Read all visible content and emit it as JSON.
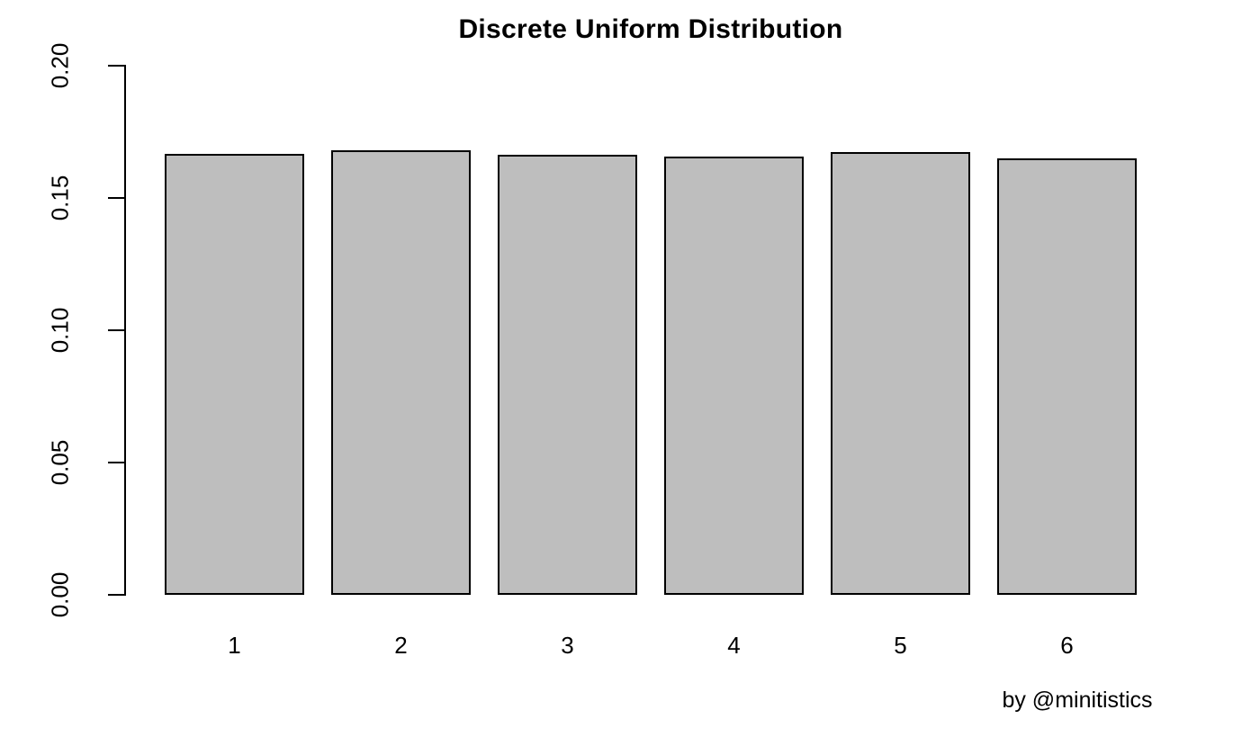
{
  "chart_data": {
    "type": "bar",
    "title": "Discrete Uniform Distribution",
    "categories": [
      "1",
      "2",
      "3",
      "4",
      "5",
      "6"
    ],
    "values": [
      0.1665,
      0.168,
      0.1663,
      0.1655,
      0.1675,
      0.165
    ],
    "xlabel": "",
    "ylabel": "",
    "ylim": [
      0,
      0.2
    ],
    "yticks": [
      0.0,
      0.05,
      0.1,
      0.15,
      0.2
    ],
    "ytick_labels": [
      "0.00",
      "0.05",
      "0.10",
      "0.15",
      "0.20"
    ],
    "grid": false,
    "legend": null,
    "caption": "by @minitistics"
  },
  "colors": {
    "bar_fill": "#BEBEBE",
    "bar_stroke": "#000000",
    "axis": "#000000",
    "text": "#000000",
    "background": "#FFFFFF"
  }
}
